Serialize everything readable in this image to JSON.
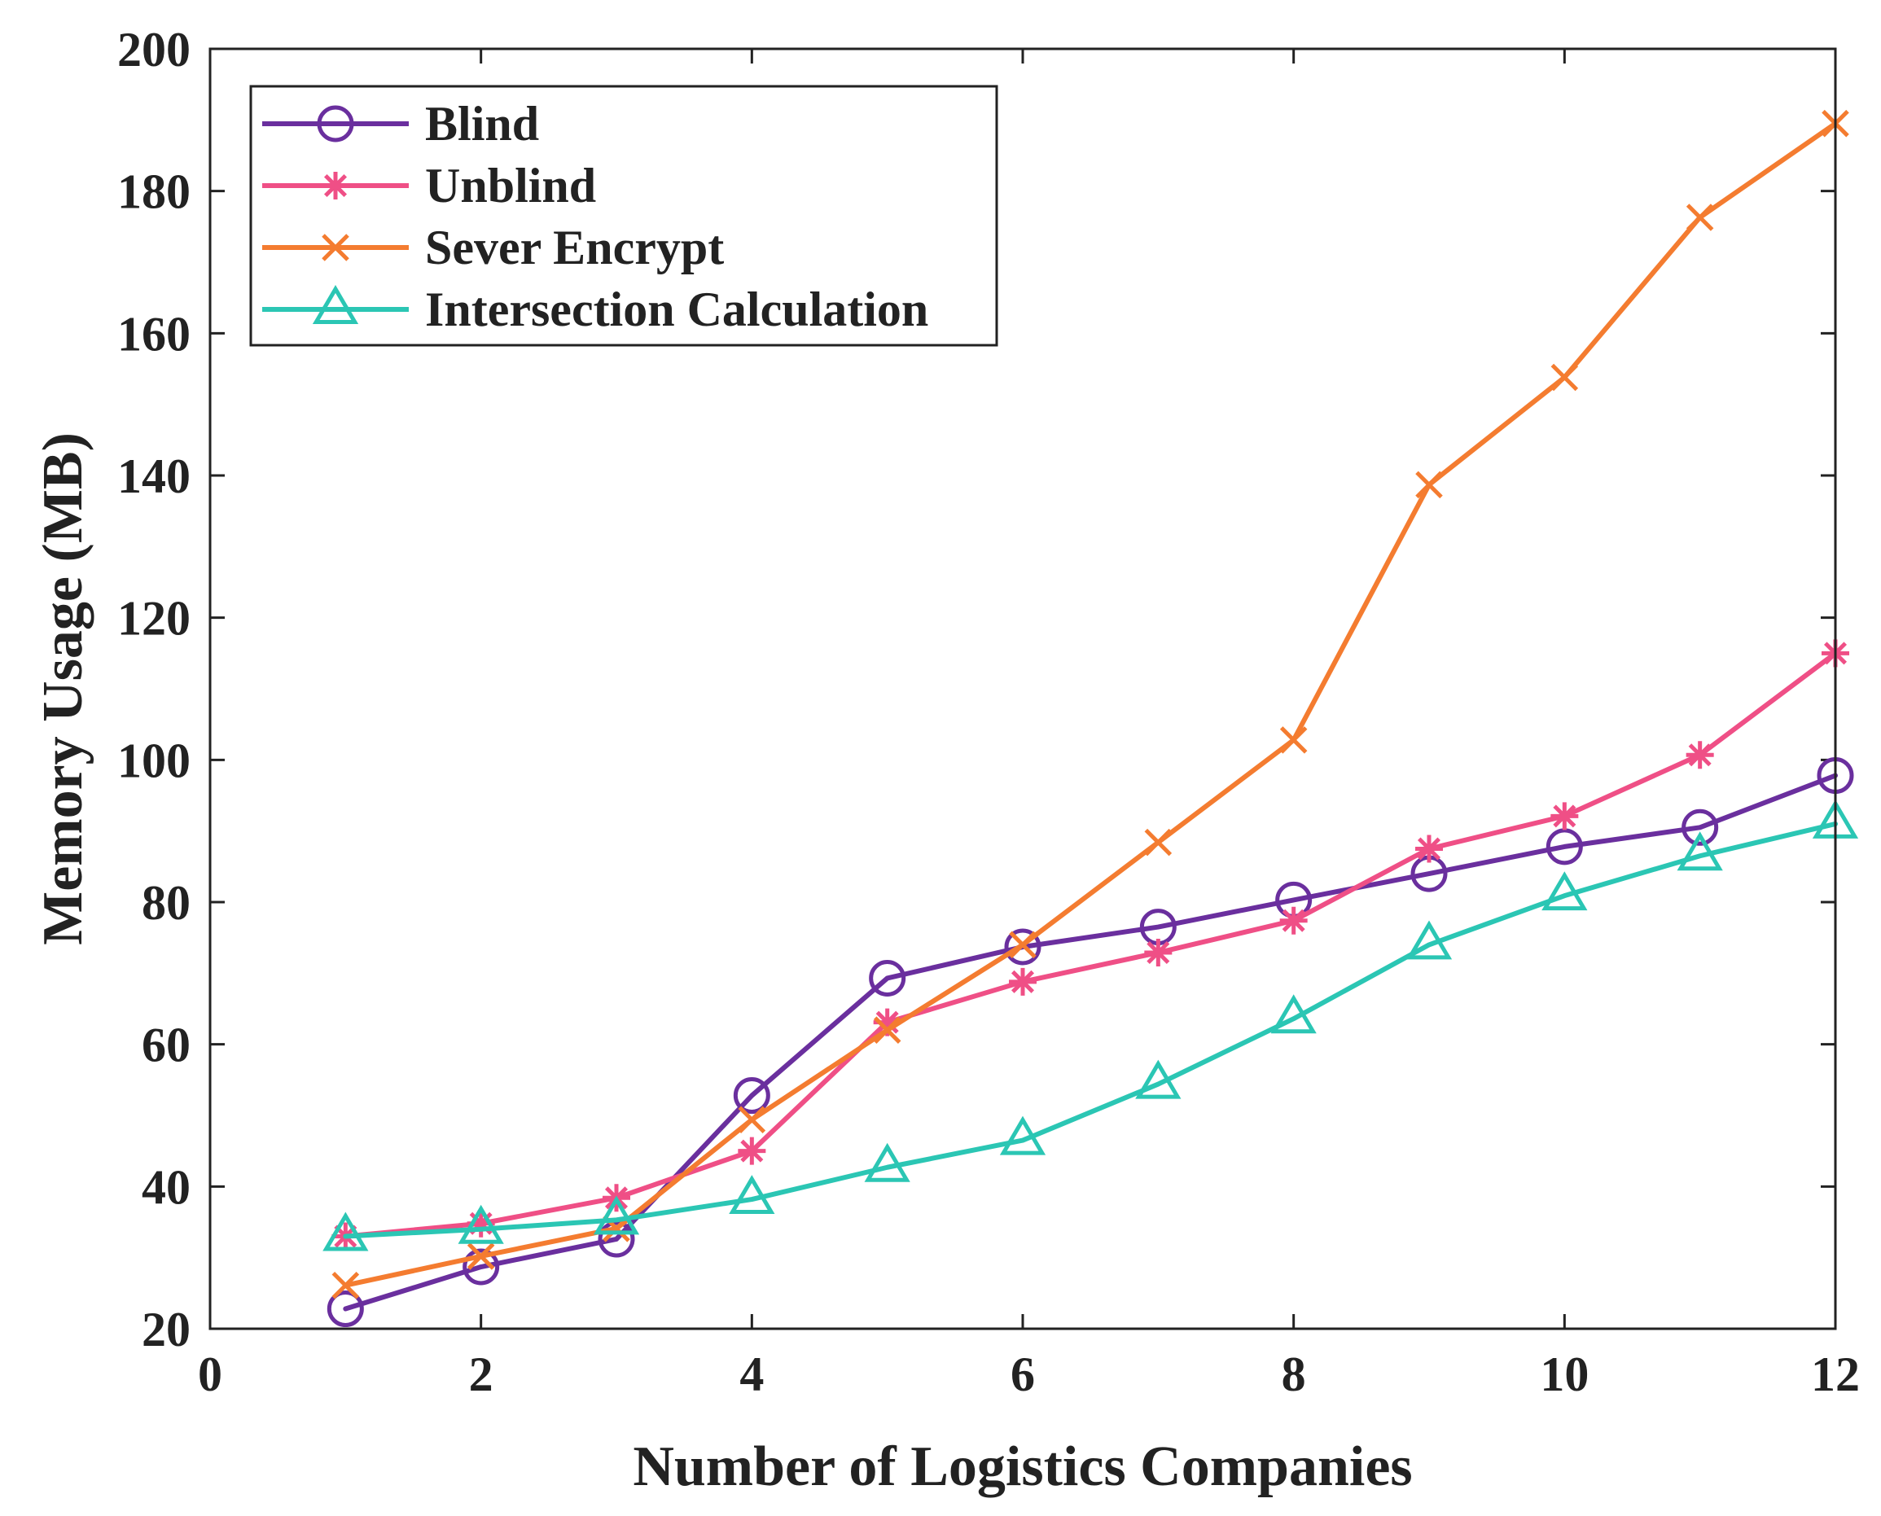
{
  "chart_data": {
    "type": "line",
    "title": "",
    "xlabel": "Number of Logistics Companies",
    "ylabel": "Memory Usage (MB)",
    "xlim": [
      0,
      12
    ],
    "ylim": [
      20,
      200
    ],
    "xticks": [
      0,
      2,
      4,
      6,
      8,
      10,
      12
    ],
    "yticks": [
      20,
      40,
      60,
      80,
      100,
      120,
      140,
      160,
      180,
      200
    ],
    "grid": false,
    "legend_position": "top-left",
    "x": [
      1,
      2,
      3,
      4,
      5,
      6,
      7,
      8,
      9,
      10,
      11,
      12
    ],
    "series": [
      {
        "name": "Blind",
        "marker": "circle",
        "color": "#6a2f9e",
        "values": [
          22.8,
          28.7,
          32.6,
          52.8,
          69.3,
          73.7,
          76.5,
          80.3,
          84.0,
          87.8,
          90.5,
          97.8
        ]
      },
      {
        "name": "Unblind",
        "marker": "asterisk",
        "color": "#ef4f86",
        "values": [
          33.0,
          34.8,
          38.4,
          45.0,
          63.1,
          68.8,
          72.9,
          77.4,
          87.5,
          92.1,
          100.7,
          115.0
        ]
      },
      {
        "name": "Sever Encrypt",
        "marker": "x",
        "color": "#f47c30",
        "values": [
          26.1,
          30.2,
          34.1,
          49.4,
          62.0,
          74.0,
          88.4,
          102.8,
          138.7,
          153.8,
          176.3,
          189.5
        ]
      },
      {
        "name": "Intersection Calculation",
        "marker": "triangle",
        "color": "#2bc6b4",
        "values": [
          33.0,
          34.0,
          35.3,
          38.2,
          42.7,
          46.5,
          54.4,
          63.6,
          74.0,
          80.9,
          86.5,
          91.0
        ]
      }
    ]
  }
}
